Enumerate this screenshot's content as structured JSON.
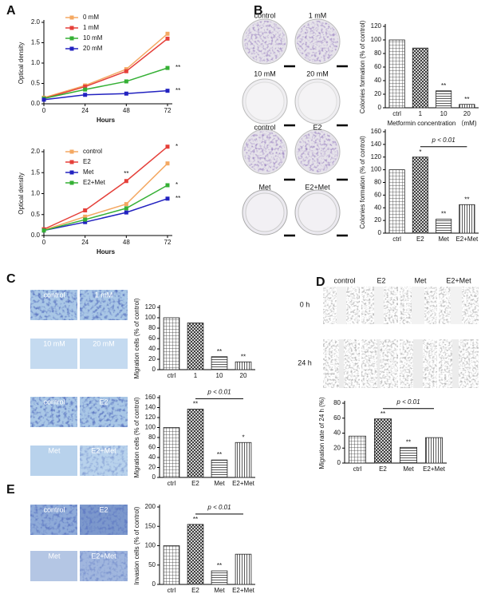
{
  "panel_labels": [
    "A",
    "B",
    "C",
    "D",
    "E"
  ],
  "captions": {
    "b_top": [
      "control",
      "1 mM",
      "10 mM",
      "20 mM"
    ],
    "b_bottom": [
      "control",
      "E2",
      "Met",
      "E2+Met"
    ],
    "c_top": [
      "control",
      "1 mM",
      "10 mM",
      "20 mM"
    ],
    "c_bottom": [
      "control",
      "E2",
      "Met",
      "E2+Met"
    ],
    "d_columns": [
      "control",
      "E2",
      "Met",
      "E2+Met"
    ],
    "d_rows": [
      "0 h",
      "24 h"
    ],
    "e": [
      "control",
      "E2",
      "Met",
      "E2+Met"
    ]
  },
  "chart_data": [
    {
      "type": "line",
      "xlabel": "Hours",
      "ylabel": "Optical density",
      "x": [
        0,
        24,
        48,
        72
      ],
      "xlim": [
        0,
        72
      ],
      "xticks": [
        0,
        24,
        48,
        72
      ],
      "ylim": [
        0,
        2
      ],
      "yticks": [
        {
          "value": 0,
          "label": "0.0"
        },
        {
          "value": 0.5,
          "label": "0.5"
        },
        {
          "value": 1,
          "label": "1.0"
        },
        {
          "value": 1.5,
          "label": "1.5"
        },
        {
          "value": 2,
          "label": "2.0"
        }
      ],
      "series": [
        {
          "name": "0 mM",
          "color": "#f4a862",
          "values": [
            0.15,
            0.45,
            0.85,
            1.72
          ],
          "significance": [
            null,
            null,
            null,
            null
          ]
        },
        {
          "name": "1 mM",
          "color": "#e5403a",
          "values": [
            0.13,
            0.42,
            0.8,
            1.6
          ],
          "significance": [
            null,
            null,
            null,
            null
          ]
        },
        {
          "name": "10 mM",
          "color": "#35b035",
          "values": [
            0.13,
            0.35,
            0.55,
            0.88
          ],
          "significance": [
            null,
            null,
            null,
            "**"
          ]
        },
        {
          "name": "20 mM",
          "color": "#2222c0",
          "values": [
            0.1,
            0.22,
            0.25,
            0.32
          ],
          "significance": [
            null,
            null,
            null,
            "**"
          ]
        }
      ]
    },
    {
      "type": "line",
      "xlabel": "Hours",
      "ylabel": "Optical density",
      "x": [
        0,
        24,
        48,
        72
      ],
      "xlim": [
        0,
        72
      ],
      "xticks": [
        0,
        24,
        48,
        72
      ],
      "ylim": [
        0,
        2
      ],
      "yticks": [
        {
          "value": 0,
          "label": "0.0"
        },
        {
          "value": 0.5,
          "label": "0.5"
        },
        {
          "value": 1,
          "label": "1.0"
        },
        {
          "value": 1.5,
          "label": "1.5"
        },
        {
          "value": 2,
          "label": "2.0"
        }
      ],
      "series": [
        {
          "name": "control",
          "color": "#f4a862",
          "values": [
            0.13,
            0.45,
            0.75,
            1.72
          ],
          "significance": [
            null,
            null,
            null,
            null
          ]
        },
        {
          "name": "E2",
          "color": "#e5403a",
          "values": [
            0.15,
            0.6,
            1.3,
            2.12
          ],
          "significance": [
            null,
            null,
            "**",
            "*"
          ]
        },
        {
          "name": "Met",
          "color": "#2222c0",
          "values": [
            0.12,
            0.32,
            0.55,
            0.88
          ],
          "significance": [
            null,
            null,
            null,
            "**"
          ]
        },
        {
          "name": "E2+Met",
          "color": "#35b035",
          "values": [
            0.12,
            0.38,
            0.65,
            1.2
          ],
          "significance": [
            null,
            null,
            null,
            "*"
          ]
        }
      ]
    },
    {
      "type": "bar",
      "xlabel": "Metformin concentration （mM)",
      "ylabel": "Colonies formation (% of control)",
      "categories": [
        "ctrl",
        "1",
        "10",
        "20"
      ],
      "values": [
        100,
        88,
        25,
        5
      ],
      "significance": [
        null,
        null,
        "**",
        "**"
      ],
      "ylim": [
        0,
        120
      ],
      "yticks": [
        0,
        20,
        40,
        60,
        80,
        100,
        120
      ]
    },
    {
      "type": "bar",
      "ylabel": "Colonies formation (% of control)",
      "bracket_label": "p < 0.01",
      "categories": [
        "ctrl",
        "E2",
        "Met",
        "E2+Met"
      ],
      "values": [
        100,
        120,
        22,
        45
      ],
      "significance": [
        null,
        "*",
        "**",
        "**"
      ],
      "ylim": [
        0,
        160
      ],
      "yticks": [
        0,
        20,
        40,
        60,
        80,
        100,
        120,
        140,
        160
      ]
    },
    {
      "type": "bar",
      "ylabel": "Migration cells (% of control)",
      "categories": [
        "ctrl",
        "1",
        "10",
        "20"
      ],
      "values": [
        100,
        90,
        25,
        15
      ],
      "significance": [
        null,
        null,
        "**",
        "**"
      ],
      "ylim": [
        0,
        120
      ],
      "yticks": [
        0,
        20,
        40,
        60,
        80,
        100,
        120
      ]
    },
    {
      "type": "bar",
      "ylabel": "Migration cells (% of control)",
      "bracket_label": "p < 0.01",
      "categories": [
        "ctrl",
        "E2",
        "Met",
        "E2+Met"
      ],
      "values": [
        100,
        137,
        35,
        70
      ],
      "significance": [
        null,
        "**",
        "**",
        "*"
      ],
      "ylim": [
        0,
        160
      ],
      "yticks": [
        0,
        20,
        40,
        60,
        80,
        100,
        120,
        140,
        160
      ]
    },
    {
      "type": "bar",
      "ylabel": "Migration rate of 24 h (%)",
      "bracket_label": "p < 0.01",
      "categories": [
        "ctrl",
        "E2",
        "Met",
        "E2+Met"
      ],
      "values": [
        36,
        59,
        21,
        34
      ],
      "significance": [
        null,
        "**",
        "**",
        null
      ],
      "ylim": [
        0,
        80
      ],
      "yticks": [
        0,
        20,
        40,
        60,
        80
      ]
    },
    {
      "type": "bar",
      "ylabel": "Invasion cells (% of control)",
      "bracket_label": "p < 0.01",
      "categories": [
        "ctrl",
        "E2",
        "Met",
        "E2+Met"
      ],
      "values": [
        100,
        155,
        35,
        78
      ],
      "significance": [
        null,
        "**",
        "**",
        null
      ],
      "ylim": [
        0,
        200
      ],
      "yticks": [
        0,
        50,
        100,
        150,
        200
      ]
    }
  ]
}
